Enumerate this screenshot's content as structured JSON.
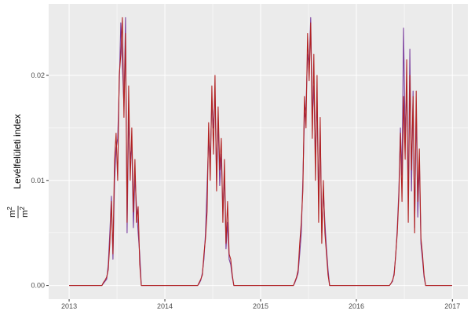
{
  "chart_data": {
    "type": "line",
    "title": "",
    "xlabel": "",
    "ylabel": "Levélfelületi index",
    "ylabel_unit_num": "m",
    "ylabel_unit_den": "m",
    "ylabel_unit_exp": "2",
    "xlim": [
      "2012-10-15",
      "2017-03-01"
    ],
    "ylim": [
      -0.0013,
      0.0268
    ],
    "x_ticks": [
      {
        "date": "2013-01-01",
        "label": "2013"
      },
      {
        "date": "2014-01-01",
        "label": "2014"
      },
      {
        "date": "2015-01-01",
        "label": "2015"
      },
      {
        "date": "2016-01-01",
        "label": "2016"
      },
      {
        "date": "2017-01-01",
        "label": "2017"
      }
    ],
    "y_ticks": [
      {
        "value": 0,
        "label": "0.00"
      },
      {
        "value": 0.01,
        "label": "0.01"
      },
      {
        "value": 0.02,
        "label": "0.02"
      }
    ],
    "grid": true,
    "legend": "none",
    "season_dates": [
      "05-06",
      "05-12",
      "05-18",
      "05-24",
      "05-30",
      "06-05",
      "06-11",
      "06-17",
      "06-23",
      "06-29",
      "07-05",
      "07-11",
      "07-17",
      "07-23",
      "07-29",
      "08-04",
      "08-10",
      "08-16",
      "08-22",
      "08-28",
      "09-03",
      "09-09",
      "09-15",
      "09-21",
      "09-27",
      "10-03"
    ],
    "x_start": "2013-01-01",
    "x_end": "2016-12-31",
    "series": [
      {
        "color": "#7b3f9e",
        "seasons": {
          "2013": [
            0,
            0.0002,
            0.0004,
            0.0006,
            0.002,
            0.005,
            0.0085,
            0.0025,
            0.01,
            0.013,
            0.014,
            0.019,
            0.025,
            0.021,
            0.017,
            0.0255,
            0.005,
            0.016,
            0.012,
            0.0135,
            0.0055,
            0.0105,
            0.0075,
            0.005,
            0.003,
            0
          ],
          "2014": [
            0,
            0.0002,
            0.0005,
            0.0012,
            0.0025,
            0.005,
            0.0095,
            0.014,
            0.012,
            0.0175,
            0.015,
            0.0185,
            0.01,
            0.016,
            0.0095,
            0.0125,
            0.007,
            0.0105,
            0.0035,
            0.006,
            0.0025,
            0.002,
            0.0008,
            0,
            0,
            0
          ],
          "2015": [
            0,
            0.0003,
            0.0007,
            0.0012,
            0.003,
            0.005,
            0.01,
            0.016,
            0.017,
            0.022,
            0.021,
            0.0255,
            0.016,
            0.019,
            0.012,
            0.018,
            0.008,
            0.015,
            0.005,
            0.009,
            0.006,
            0.0035,
            0.0015,
            0,
            0,
            0
          ],
          "2016": [
            0,
            0.0002,
            0.0004,
            0.0012,
            0.0028,
            0.0055,
            0.009,
            0.015,
            0.0105,
            0.0245,
            0.014,
            0.019,
            0.008,
            0.0225,
            0.009,
            0.0185,
            0.0055,
            0.017,
            0.0065,
            0.012,
            0.004,
            0.0025,
            0.0008,
            0,
            0,
            0
          ]
        }
      },
      {
        "color": "#b22222",
        "seasons": {
          "2013": [
            0,
            0.0003,
            0.0005,
            0.0008,
            0.0015,
            0.004,
            0.008,
            0.003,
            0.012,
            0.0145,
            0.01,
            0.02,
            0.022,
            0.0255,
            0.016,
            0.024,
            0.006,
            0.019,
            0.01,
            0.015,
            0.007,
            0.012,
            0.006,
            0.0075,
            0.002,
            0
          ],
          "2014": [
            0,
            0.0003,
            0.0006,
            0.001,
            0.003,
            0.0045,
            0.007,
            0.0155,
            0.01,
            0.019,
            0.0125,
            0.02,
            0.009,
            0.017,
            0.011,
            0.014,
            0.006,
            0.012,
            0.004,
            0.008,
            0.003,
            0.0025,
            0.001,
            0,
            0,
            0
          ],
          "2015": [
            0,
            0.0004,
            0.0008,
            0.0015,
            0.004,
            0.006,
            0.009,
            0.018,
            0.015,
            0.024,
            0.0195,
            0.025,
            0.014,
            0.022,
            0.01,
            0.02,
            0.006,
            0.016,
            0.004,
            0.01,
            0.005,
            0.003,
            0.001,
            0,
            0,
            0
          ],
          "2016": [
            0,
            0.0002,
            0.0005,
            0.001,
            0.003,
            0.005,
            0.0085,
            0.0145,
            0.008,
            0.018,
            0.012,
            0.0215,
            0.006,
            0.02,
            0.011,
            0.018,
            0.005,
            0.0185,
            0.008,
            0.013,
            0.0045,
            0.003,
            0.001,
            0,
            0,
            0
          ]
        }
      }
    ]
  }
}
